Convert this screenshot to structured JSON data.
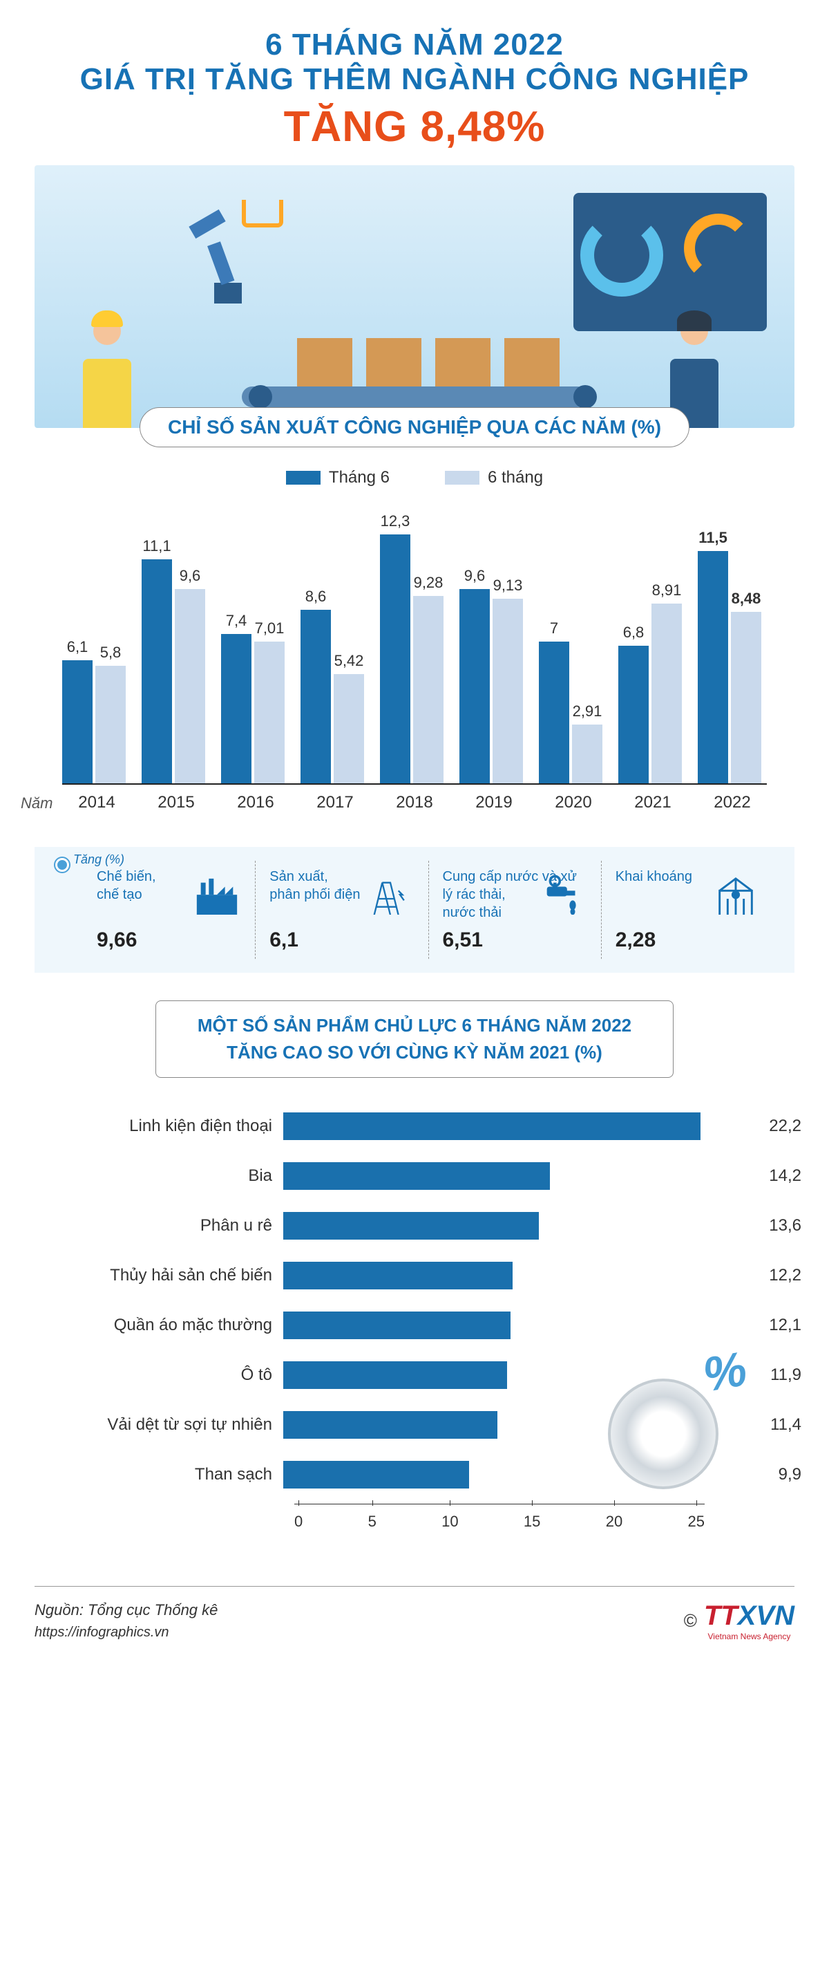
{
  "header": {
    "line1": "6 THÁNG NĂM 2022",
    "line2": "GIÁ TRỊ TĂNG THÊM NGÀNH CÔNG NGHIỆP",
    "line3": "TĂNG 8,48%",
    "color_blue": "#1772b5",
    "color_orange": "#e84e1a"
  },
  "illustration": {
    "bg_gradient_top": "#dff0fa",
    "bg_gradient_bottom": "#b5dcf2",
    "box_color": "#d49955",
    "machine_color": "#2b5c8a",
    "worker_suit": "#f5d547",
    "helmet": "#ffcc33"
  },
  "section1": {
    "title": "CHỈ SỐ SẢN XUẤT CÔNG NGHIỆP QUA CÁC NĂM (%)",
    "legend": [
      {
        "label": "Tháng 6",
        "color": "#1a70ad"
      },
      {
        "label": "6 tháng",
        "color": "#c9d9ec"
      }
    ],
    "chart": {
      "type": "grouped-bar",
      "x_axis_title": "Năm",
      "years": [
        "2014",
        "2015",
        "2016",
        "2017",
        "2018",
        "2019",
        "2020",
        "2021",
        "2022"
      ],
      "series": [
        {
          "name": "Tháng 6",
          "color": "#1a70ad",
          "values": [
            6.1,
            11.1,
            7.4,
            8.6,
            12.3,
            9.6,
            7,
            6.8,
            11.5
          ],
          "labels": [
            "6,1",
            "11,1",
            "7,4",
            "8,6",
            "12,3",
            "9,6",
            "7",
            "6,8",
            "11,5"
          ]
        },
        {
          "name": "6 tháng",
          "color": "#c9d9ec",
          "values": [
            5.8,
            9.6,
            7.01,
            5.42,
            9.28,
            9.13,
            2.91,
            8.91,
            8.48
          ],
          "labels": [
            "5,8",
            "9,6",
            "7,01",
            "5,42",
            "9,28",
            "9,13",
            "2,91",
            "8,91",
            "8,48"
          ]
        }
      ],
      "ymax": 13,
      "highlight_year": "2022",
      "label_fontsize": 22,
      "axis_fontsize": 24
    }
  },
  "sectors": {
    "strip_label": "Tăng (%)",
    "bg_color": "#eff7fc",
    "items": [
      {
        "name": "Chế biến, chế tạo",
        "value": "9,66",
        "icon": "factory-icon"
      },
      {
        "name": "Sản xuất, phân phối điện",
        "value": "6,1",
        "icon": "power-icon"
      },
      {
        "name": "Cung cấp nước và xử lý rác thải, nước thải",
        "value": "6,51",
        "icon": "water-icon"
      },
      {
        "name": "Khai khoáng",
        "value": "2,28",
        "icon": "mining-icon"
      }
    ],
    "name_color": "#1772b5",
    "value_color": "#222222"
  },
  "section2": {
    "title_line1": "MỘT SỐ SẢN PHẨM CHỦ LỰC 6 THÁNG NĂM 2022",
    "title_line2": "TĂNG CAO SO VỚI CÙNG KỲ NĂM 2021 (%)",
    "chart": {
      "type": "horizontal-bar",
      "bar_color": "#1a70ad",
      "xmax": 25,
      "xticks": [
        0,
        5,
        10,
        15,
        20,
        25
      ],
      "items": [
        {
          "label": "Linh kiện điện thoại",
          "value": 22.2,
          "display": "22,2"
        },
        {
          "label": "Bia",
          "value": 14.2,
          "display": "14,2"
        },
        {
          "label": "Phân u rê",
          "value": 13.6,
          "display": "13,6"
        },
        {
          "label": "Thủy hải sản chế biến",
          "value": 12.2,
          "display": "12,2"
        },
        {
          "label": "Quần áo mặc thường",
          "value": 12.1,
          "display": "12,1"
        },
        {
          "label": "Ô tô",
          "value": 11.9,
          "display": "11,9"
        },
        {
          "label": "Vải dệt từ sợi tự nhiên",
          "value": 11.4,
          "display": "11,4"
        },
        {
          "label": "Than sạch",
          "value": 9.9,
          "display": "9,9"
        }
      ],
      "label_fontsize": 24
    },
    "gear_percent": "%",
    "gear_color": "#4aa0d8"
  },
  "footer": {
    "source": "Nguồn: Tổng cục Thống kê",
    "url": "https://infographics.vn",
    "copyright": "©",
    "logo_red": "TT",
    "logo_blue": "XVN",
    "logo_sub": "Vietnam News Agency",
    "color_red": "#c8202f",
    "color_blue": "#1772b5"
  }
}
